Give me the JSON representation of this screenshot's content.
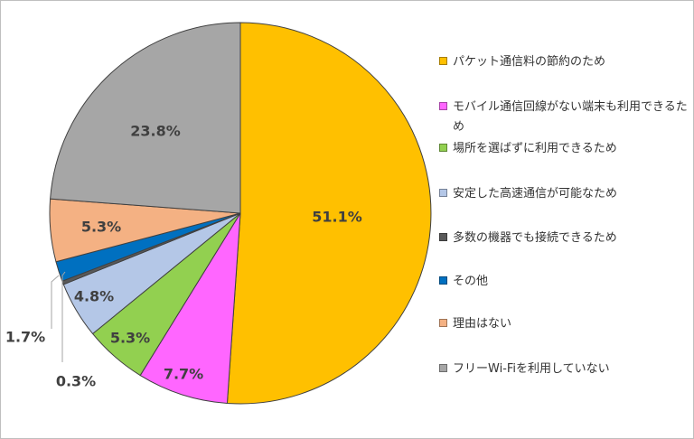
{
  "chart_data": {
    "type": "pie",
    "categories": [
      "パケット通信料の節約のため",
      "モバイル通信回線がない端末も利用できるため",
      "場所を選ばずに利用できるため",
      "安定した高速通信が可能なため",
      "多数の機器でも接続できるため",
      "その他",
      "理由はない",
      "フリーWi-Fiを利用していない"
    ],
    "values": [
      51.1,
      7.7,
      5.3,
      4.8,
      0.3,
      1.7,
      5.3,
      23.8
    ],
    "labels": [
      "51.1%",
      "7.7%",
      "5.3%",
      "4.8%",
      "0.3%",
      "1.7%",
      "5.3%",
      "23.8%"
    ],
    "colors": [
      "#FFC000",
      "#FF66FF",
      "#92D050",
      "#B4C7E7",
      "#595959",
      "#0070C0",
      "#F4B183",
      "#A6A6A6"
    ],
    "legend_position": "right",
    "start": "top, clockwise"
  }
}
